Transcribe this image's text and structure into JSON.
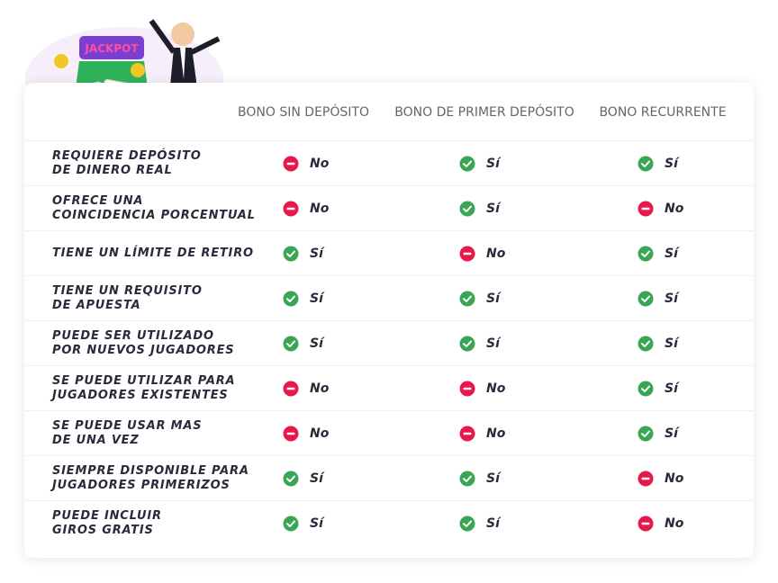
{
  "table": {
    "header": [
      "BONO SIN DEPÓSITO",
      "BONO DE PRIMER DEPÓSITO",
      "BONO RECURRENTE"
    ],
    "rows": [
      {
        "label": "REQUIERE DEPÓSITO\nDE DINERO REAL",
        "cells": [
          {
            "text": "No",
            "positive": false
          },
          {
            "text": "Sí",
            "positive": true
          },
          {
            "text": "Sí",
            "positive": true
          }
        ]
      },
      {
        "label": "OFRECE UNA\nCOINCIDENCIA PORCENTUAL",
        "cells": [
          {
            "text": "No",
            "positive": false
          },
          {
            "text": "Sí",
            "positive": true
          },
          {
            "text": "No",
            "positive": false
          }
        ]
      },
      {
        "label": "TIENE UN LÍMITE DE RETIRO",
        "cells": [
          {
            "text": "Sí",
            "positive": true
          },
          {
            "text": "No",
            "positive": false
          },
          {
            "text": "Sí",
            "positive": true
          }
        ]
      },
      {
        "label": "TIENE UN REQUISITO\nDE APUESTA",
        "cells": [
          {
            "text": "Sí",
            "positive": true
          },
          {
            "text": "Sí",
            "positive": true
          },
          {
            "text": "Sí",
            "positive": true
          }
        ]
      },
      {
        "label": "PUEDE SER UTILIZADO\nPOR NUEVOS JUGADORES",
        "cells": [
          {
            "text": "Sí",
            "positive": true
          },
          {
            "text": "Sí",
            "positive": true
          },
          {
            "text": "Sí",
            "positive": true
          }
        ]
      },
      {
        "label": "SE PUEDE UTILIZAR PARA\nJUGADORES EXISTENTES",
        "cells": [
          {
            "text": "No",
            "positive": false
          },
          {
            "text": "No",
            "positive": false
          },
          {
            "text": "Sí",
            "positive": true
          }
        ]
      },
      {
        "label": "SE PUEDE USAR MAS\nDE UNA VEZ",
        "cells": [
          {
            "text": "No",
            "positive": false
          },
          {
            "text": "No",
            "positive": false
          },
          {
            "text": "Sí",
            "positive": true
          }
        ]
      },
      {
        "label": "SIEMPRE DISPONIBLE PARA\nJUGADORES PRIMERIZOS",
        "cells": [
          {
            "text": "Sí",
            "positive": true
          },
          {
            "text": "Sí",
            "positive": true
          },
          {
            "text": "No",
            "positive": false
          }
        ]
      },
      {
        "label": "PUEDE INCLUIR\nGIROS GRATIS",
        "cells": [
          {
            "text": "Sí",
            "positive": true
          },
          {
            "text": "Sí",
            "positive": true
          },
          {
            "text": "No",
            "positive": false
          }
        ]
      }
    ]
  }
}
